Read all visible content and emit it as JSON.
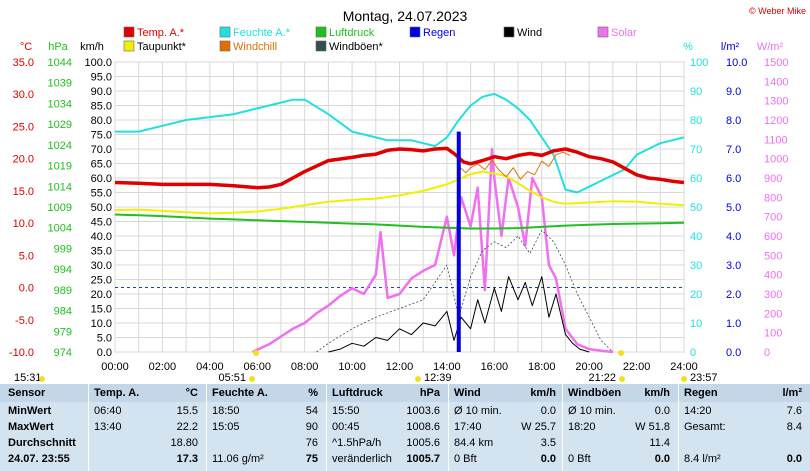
{
  "chart_data": {
    "type": "line",
    "title": "Montag, 24.07.2023",
    "copyright": "© Weber Mike",
    "x_ticks": [
      "00:00",
      "02:00",
      "04:00",
      "06:00",
      "08:00",
      "10:00",
      "12:00",
      "14:00",
      "16:00",
      "18:00",
      "20:00",
      "22:00",
      "24:00"
    ],
    "xlim": [
      0,
      24
    ],
    "legend": [
      {
        "label": "Temp. A.*",
        "color": "#e00000"
      },
      {
        "label": "Feuchte A.*",
        "color": "#20e0e0"
      },
      {
        "label": "Luftdruck",
        "color": "#20c020"
      },
      {
        "label": "Regen",
        "color": "#0000e0"
      },
      {
        "label": "Wind",
        "color": "#000000"
      },
      {
        "label": "Solar",
        "color": "#f070f0"
      },
      {
        "label": "Taupunkt*",
        "color": "#f0f000"
      },
      {
        "label": "Windchill",
        "color": "#e07000"
      },
      {
        "label": "Windböen*",
        "color": "#305050"
      }
    ],
    "axes": {
      "temp": {
        "unit": "°C",
        "color": "#e00000",
        "ticks": [
          "35.0",
          "30.0",
          "25.0",
          "20.0",
          "15.0",
          "10.0",
          "5.0",
          "0.0",
          "-5.0",
          "-10.0"
        ],
        "range": [
          -10,
          35
        ]
      },
      "pressure": {
        "unit": "hPa",
        "color": "#20c020",
        "ticks": [
          "1044",
          "1039",
          "1034",
          "1029",
          "1024",
          "1019",
          "1014",
          "1009",
          "1004",
          "999",
          "994",
          "989",
          "984",
          "979",
          "974"
        ],
        "range": [
          974,
          1044
        ]
      },
      "wind": {
        "unit": "km/h",
        "color": "#000000",
        "ticks": [
          "100.0",
          "95.0",
          "90.0",
          "85.0",
          "80.0",
          "75.0",
          "70.0",
          "65.0",
          "60.0",
          "55.0",
          "50.0",
          "45.0",
          "40.0",
          "35.0",
          "30.0",
          "25.0",
          "20.0",
          "15.0",
          "10.0",
          "5.0",
          "0.0"
        ],
        "range": [
          0,
          100
        ]
      },
      "humidity": {
        "unit": "%",
        "color": "#20e0e0",
        "ticks": [
          "100",
          "90",
          "80",
          "70",
          "60",
          "50",
          "40",
          "30",
          "20",
          "10",
          "0"
        ],
        "range": [
          0,
          100
        ]
      },
      "rain": {
        "unit": "l/m²",
        "color": "#0000e0",
        "ticks": [
          "10.0",
          "9.0",
          "8.0",
          "7.0",
          "6.0",
          "5.0",
          "4.0",
          "3.0",
          "2.0",
          "1.0",
          "0.0"
        ],
        "range": [
          0,
          10
        ]
      },
      "solar": {
        "unit": "W/m²",
        "color": "#f070f0",
        "ticks": [
          "1500",
          "1400",
          "1300",
          "1200",
          "1100",
          "1000",
          "900",
          "800",
          "700",
          "600",
          "500",
          "400",
          "300",
          "200",
          "100",
          "0"
        ],
        "range": [
          0,
          1500
        ]
      }
    },
    "series": [
      {
        "name": "Temp. A.*",
        "color": "#e00000",
        "axis": "temp",
        "x": [
          0,
          1,
          2,
          3,
          4,
          5,
          6,
          6.5,
          7,
          7.5,
          8,
          9,
          10,
          10.5,
          11,
          11.5,
          12,
          12.5,
          13,
          13.5,
          14,
          14.3,
          14.7,
          15,
          15.5,
          16,
          16.5,
          17,
          17.5,
          18,
          18.5,
          19,
          19.5,
          20,
          20.5,
          21,
          21.5,
          22,
          22.5,
          23,
          23.5,
          24
        ],
        "y": [
          16.3,
          16.2,
          16.0,
          16.0,
          16.0,
          15.8,
          15.5,
          15.6,
          16.0,
          17.0,
          18.0,
          19.7,
          20.2,
          20.5,
          20.7,
          21.3,
          21.5,
          21.4,
          21.2,
          21.5,
          21.6,
          20.8,
          19.5,
          19.2,
          19.7,
          20.3,
          20.0,
          20.5,
          20.8,
          20.5,
          21.2,
          21.5,
          21.0,
          20.3,
          20.0,
          19.5,
          18.5,
          17.5,
          17.0,
          16.8,
          16.5,
          16.3
        ]
      },
      {
        "name": "Feuchte A.*",
        "color": "#20e0e0",
        "axis": "humidity",
        "x": [
          0,
          1,
          2,
          3,
          4,
          5,
          6,
          6.5,
          7,
          7.5,
          8,
          9,
          10,
          10.5,
          11,
          11.5,
          12,
          12.5,
          13,
          13.5,
          14,
          14.5,
          15,
          15.5,
          16,
          16.5,
          17,
          17.5,
          18,
          18.5,
          19,
          19.5,
          20,
          20.5,
          21,
          21.5,
          22,
          22.5,
          23,
          23.5,
          24
        ],
        "y": [
          76,
          76,
          78,
          80,
          81,
          82,
          84,
          85,
          86,
          87,
          87,
          82,
          76,
          75,
          74,
          73,
          73,
          73,
          72,
          71,
          74,
          80,
          85,
          88,
          89,
          87,
          84,
          80,
          74,
          68,
          56,
          55,
          57,
          59,
          61,
          63,
          68,
          70,
          72,
          73,
          74
        ]
      },
      {
        "name": "Luftdruck",
        "color": "#20c020",
        "axis": "pressure",
        "x": [
          0,
          1,
          2,
          3,
          4,
          5,
          6,
          7,
          8,
          9,
          10,
          11,
          12,
          13,
          14,
          15,
          16,
          17,
          18,
          19,
          20,
          21,
          22,
          23,
          24
        ],
        "y": [
          1007.2,
          1007.0,
          1006.8,
          1006.5,
          1006.2,
          1006.0,
          1005.8,
          1005.6,
          1005.4,
          1005.2,
          1005.0,
          1004.8,
          1004.5,
          1004.2,
          1004.0,
          1003.8,
          1003.8,
          1003.9,
          1004.2,
          1004.5,
          1004.7,
          1004.9,
          1005.0,
          1005.1,
          1005.2
        ]
      },
      {
        "name": "Taupunkt*",
        "color": "#f0f000",
        "axis": "temp",
        "x": [
          0,
          1,
          2,
          3,
          4,
          5,
          6,
          7,
          8,
          9,
          10,
          11,
          12,
          13,
          14,
          14.5,
          15,
          15.5,
          16,
          16.5,
          17,
          17.5,
          18,
          18.5,
          19,
          20,
          21,
          22,
          23,
          24
        ],
        "y": [
          12.0,
          12.1,
          11.9,
          11.7,
          11.5,
          11.6,
          11.8,
          12.2,
          12.8,
          13.3,
          13.6,
          13.8,
          14.3,
          15.0,
          16.0,
          16.8,
          17.6,
          18.0,
          17.7,
          17.3,
          16.2,
          15.0,
          14.0,
          13.3,
          13.0,
          13.2,
          13.4,
          13.3,
          13.0,
          12.8
        ]
      },
      {
        "name": "Windchill",
        "color": "#e07000",
        "axis": "temp",
        "x": [
          14.5,
          14.8,
          15.0,
          15.3,
          15.6,
          15.9,
          16.2,
          16.5,
          16.8,
          17.1,
          17.4,
          17.7,
          18.0,
          18.3,
          18.6,
          18.9,
          19.2
        ],
        "y": [
          18.8,
          17.8,
          18.6,
          19.2,
          18.3,
          19.7,
          18.2,
          17.2,
          18.6,
          16.8,
          18.0,
          17.5,
          19.6,
          18.8,
          20.6,
          21.0,
          20.5
        ]
      },
      {
        "name": "Wind",
        "color": "#000000",
        "axis": "wind",
        "x": [
          9,
          9.5,
          10,
          10.5,
          11,
          11.5,
          12,
          12.5,
          13,
          13.5,
          14,
          14.3,
          14.6,
          15,
          15.3,
          15.6,
          16,
          16.3,
          16.6,
          17,
          17.3,
          17.6,
          18,
          18.3,
          18.6,
          19,
          19.3,
          19.6,
          20
        ],
        "y": [
          0,
          1,
          3,
          2,
          5,
          4,
          8,
          6,
          10,
          9,
          14,
          4,
          12,
          8,
          18,
          10,
          22,
          14,
          26,
          18,
          24,
          16,
          26,
          12,
          20,
          6,
          3,
          1,
          0
        ]
      },
      {
        "name": "Windböen*",
        "color": "#305050",
        "axis": "wind",
        "x": [
          8.5,
          9,
          10,
          11,
          12,
          13,
          14,
          14.5,
          15,
          15.5,
          16,
          16.5,
          17,
          17.5,
          18,
          18.5,
          19,
          19.5,
          20,
          20.5,
          21
        ],
        "y": [
          0,
          3,
          8,
          12,
          15,
          18,
          30,
          12,
          26,
          35,
          38,
          36,
          40,
          34,
          42,
          38,
          30,
          20,
          12,
          4,
          0
        ]
      },
      {
        "name": "Solar",
        "color": "#f070f0",
        "axis": "solar",
        "x": [
          5.8,
          6.5,
          7,
          7.5,
          8,
          8.5,
          9,
          9.5,
          10,
          10.5,
          11,
          11.2,
          11.5,
          12,
          12.5,
          13,
          13.5,
          14,
          14.3,
          14.6,
          15,
          15.3,
          15.6,
          15.9,
          16,
          16.3,
          16.6,
          17,
          17.3,
          17.6,
          18,
          18.3,
          18.6,
          19,
          19.5,
          20,
          20.6,
          21
        ],
        "y": [
          0,
          40,
          80,
          120,
          150,
          200,
          240,
          290,
          330,
          300,
          400,
          620,
          280,
          300,
          380,
          420,
          450,
          700,
          500,
          800,
          650,
          850,
          320,
          1050,
          900,
          600,
          900,
          750,
          550,
          900,
          800,
          450,
          380,
          120,
          40,
          15,
          5,
          0
        ]
      },
      {
        "name": "Regen",
        "color": "#0000e0",
        "axis": "rain",
        "x": [
          14.5
        ],
        "y": [
          7.6
        ]
      }
    ],
    "time_markers": [
      {
        "label": "15:31"
      },
      {
        "label": "05:51"
      },
      {
        "label": "12:39"
      },
      {
        "label": "21:22"
      },
      {
        "label": "23:57"
      }
    ]
  },
  "stats": {
    "header": [
      "Sensor",
      "Temp. A.",
      "°C",
      "Feuchte A.",
      "%",
      "Luftdruck",
      "hPa",
      "Wind",
      "km/h",
      "Windböen",
      "km/h",
      "Regen",
      "l/m²"
    ],
    "rows": [
      {
        "label": "MinWert",
        "c": [
          "06:40",
          "15.5",
          "18:50",
          "54",
          "15:50",
          "1003.6",
          "Ø 10 min.",
          "0.0",
          "Ø 10 min.",
          "0.0",
          "14:20",
          "7.6"
        ]
      },
      {
        "label": "MaxWert",
        "c": [
          "13:40",
          "22.2",
          "15:05",
          "90",
          "00:45",
          "1008.6",
          "17:40",
          "W 25.7",
          "18:20",
          "W 51.8",
          "Gesamt:",
          "8.4"
        ]
      },
      {
        "label": "Durchschnitt",
        "c": [
          "",
          "18.80",
          "",
          "76",
          "^1.5hPa/h",
          "1005.6",
          "84.4 km",
          "3.5",
          "",
          "11.4",
          "",
          ""
        ]
      },
      {
        "label": "24.07. 23:55",
        "c": [
          "",
          "17.3",
          "11.06 g/m²",
          "75",
          "veränderlich",
          "1005.7",
          "0 Bft",
          "0.0",
          "0 Bft",
          "0.0",
          "8.4 l/m²",
          "0.0"
        ]
      }
    ]
  }
}
